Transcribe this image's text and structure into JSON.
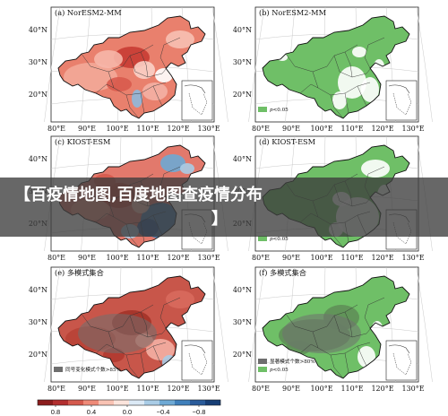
{
  "banner": {
    "line1": "【百疫情地图,百度地图查疫情分布",
    "line2": "】"
  },
  "panels": [
    {
      "title": "(a) NorESM2-MM",
      "kind": "corr",
      "scheme": "a",
      "legend": []
    },
    {
      "title": "(b) NorESM2-MM",
      "kind": "sig",
      "scheme": "b",
      "legend": [
        {
          "swatch": "green",
          "label": "p<0.05"
        }
      ]
    },
    {
      "title": "(c) KIOST-ESM",
      "kind": "corr",
      "scheme": "c",
      "legend": []
    },
    {
      "title": "(d) KIOST-ESM",
      "kind": "sig",
      "scheme": "d",
      "legend": [
        {
          "swatch": "green",
          "label": "p<0.05"
        }
      ]
    },
    {
      "title": "(e) 多模式集合",
      "kind": "corr",
      "scheme": "e",
      "legend": [
        {
          "swatch": "gray",
          "label": "同号变化模式个数>85%"
        }
      ]
    },
    {
      "title": "(f) 多模式集合",
      "kind": "sig",
      "scheme": "f",
      "legend": [
        {
          "swatch": "gray",
          "label": "显著模式个数>80%"
        },
        {
          "swatch": "green",
          "label": "p<0.05"
        }
      ]
    }
  ],
  "axes": {
    "lat_labels": [
      "40°N",
      "30°N",
      "20°N"
    ],
    "lon_labels": [
      "80°E",
      "90°E",
      "100°E",
      "110°E",
      "120°E",
      "130°E"
    ]
  },
  "colorbar": {
    "ticks": [
      "0.8",
      "0.4",
      "0.0",
      "−0.4",
      "−0.8"
    ],
    "colors": [
      "#8b1c1c",
      "#b22f2f",
      "#d45a4d",
      "#ee8a78",
      "#f8c2b3",
      "#fbe4dc",
      "#dbe9f5",
      "#a9cce6",
      "#6ea9d4",
      "#3f7fba",
      "#2a5b9a",
      "#173e75"
    ]
  },
  "colors": {
    "sig_green": "#6fbf67",
    "stipple_gray": "#6e6e6e",
    "banner_bg": "#3c3c3c"
  }
}
